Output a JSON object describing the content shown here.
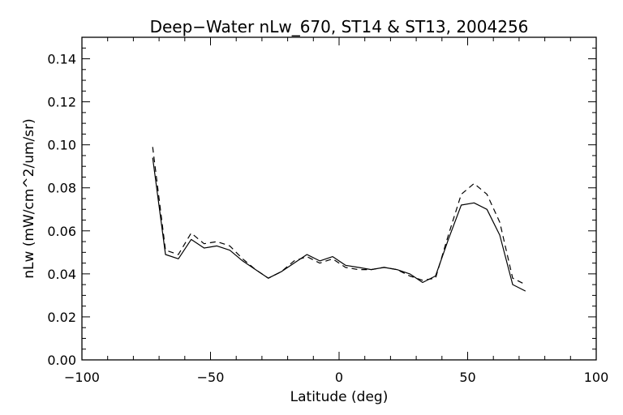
{
  "chart_data": {
    "type": "line",
    "title": "Deep−Water nLw_670, ST14 & ST13, 2004256",
    "xlabel": "Latitude (deg)",
    "ylabel": "nLw (mW/cm^2/um/sr)",
    "xlim": [
      -100,
      100
    ],
    "ylim": [
      0.0,
      0.15
    ],
    "x_ticks": [
      -100,
      -50,
      0,
      50,
      100
    ],
    "x_tick_labels": [
      "−100",
      "−50",
      "0",
      "50",
      "100"
    ],
    "y_ticks": [
      0.0,
      0.02,
      0.04,
      0.06,
      0.08,
      0.1,
      0.12,
      0.14
    ],
    "y_tick_labels": [
      "0.00",
      "0.02",
      "0.04",
      "0.06",
      "0.08",
      "0.10",
      "0.12",
      "0.14"
    ],
    "grid": false,
    "series": [
      {
        "style": "solid",
        "color": "#000000",
        "x": [
          -72.5,
          -67.5,
          -62.5,
          -57.5,
          -52.5,
          -47.5,
          -42.5,
          -37.5,
          -32.5,
          -27.5,
          -22.5,
          -17.5,
          -12.5,
          -7.5,
          -2.5,
          2.5,
          7.5,
          12.5,
          17.5,
          22.5,
          27.5,
          32.5,
          37.5,
          42.5,
          47.5,
          52.5,
          57.5,
          62.5,
          67.5,
          72.5
        ],
        "y": [
          0.094,
          0.049,
          0.047,
          0.056,
          0.052,
          0.053,
          0.051,
          0.046,
          0.042,
          0.038,
          0.041,
          0.045,
          0.049,
          0.046,
          0.048,
          0.044,
          0.043,
          0.042,
          0.043,
          0.042,
          0.04,
          0.036,
          0.039,
          0.056,
          0.072,
          0.073,
          0.07,
          0.058,
          0.035,
          0.032
        ]
      },
      {
        "style": "dashed",
        "color": "#000000",
        "x": [
          -72.5,
          -67.5,
          -62.5,
          -57.5,
          -52.5,
          -47.5,
          -42.5,
          -37.5,
          -32.5,
          -27.5,
          -22.5,
          -17.5,
          -12.5,
          -7.5,
          -2.5,
          2.5,
          7.5,
          12.5,
          17.5,
          22.5,
          27.5,
          32.5,
          37.5,
          42.5,
          47.5,
          52.5,
          57.5,
          62.5,
          67.5,
          72.5
        ],
        "y": [
          0.099,
          0.051,
          0.049,
          0.059,
          0.054,
          0.055,
          0.053,
          0.047,
          0.042,
          0.038,
          0.041,
          0.046,
          0.048,
          0.045,
          0.047,
          0.043,
          0.042,
          0.042,
          0.043,
          0.042,
          0.039,
          0.037,
          0.038,
          0.058,
          0.077,
          0.082,
          0.077,
          0.064,
          0.038,
          0.035
        ]
      }
    ]
  }
}
